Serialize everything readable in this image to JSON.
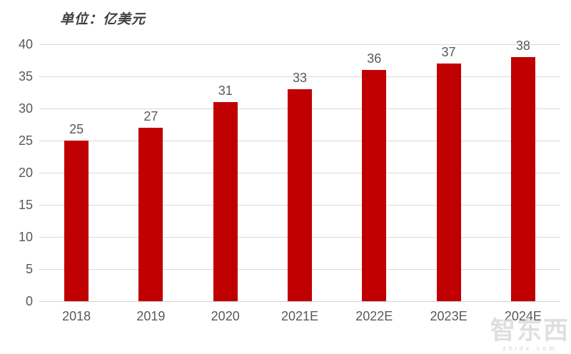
{
  "chart": {
    "unit_label": "单位：亿美元",
    "watermark": {
      "logo": "智东西",
      "domain": "zhidx.com"
    }
  },
  "chart_data": {
    "type": "bar",
    "title": "单位：亿美元",
    "categories": [
      "2018",
      "2019",
      "2020",
      "2021E",
      "2022E",
      "2023E",
      "2024E"
    ],
    "values": [
      25,
      27,
      31,
      33,
      36,
      37,
      38
    ],
    "xlabel": "",
    "ylabel": "",
    "ylim": [
      0,
      40
    ],
    "yticks": [
      0,
      5,
      10,
      15,
      20,
      25,
      30,
      35,
      40
    ],
    "grid": true,
    "legend_position": "none",
    "bar_color": "#C00000",
    "gridline_color": "#D9D9D9",
    "label_color": "#595959"
  }
}
